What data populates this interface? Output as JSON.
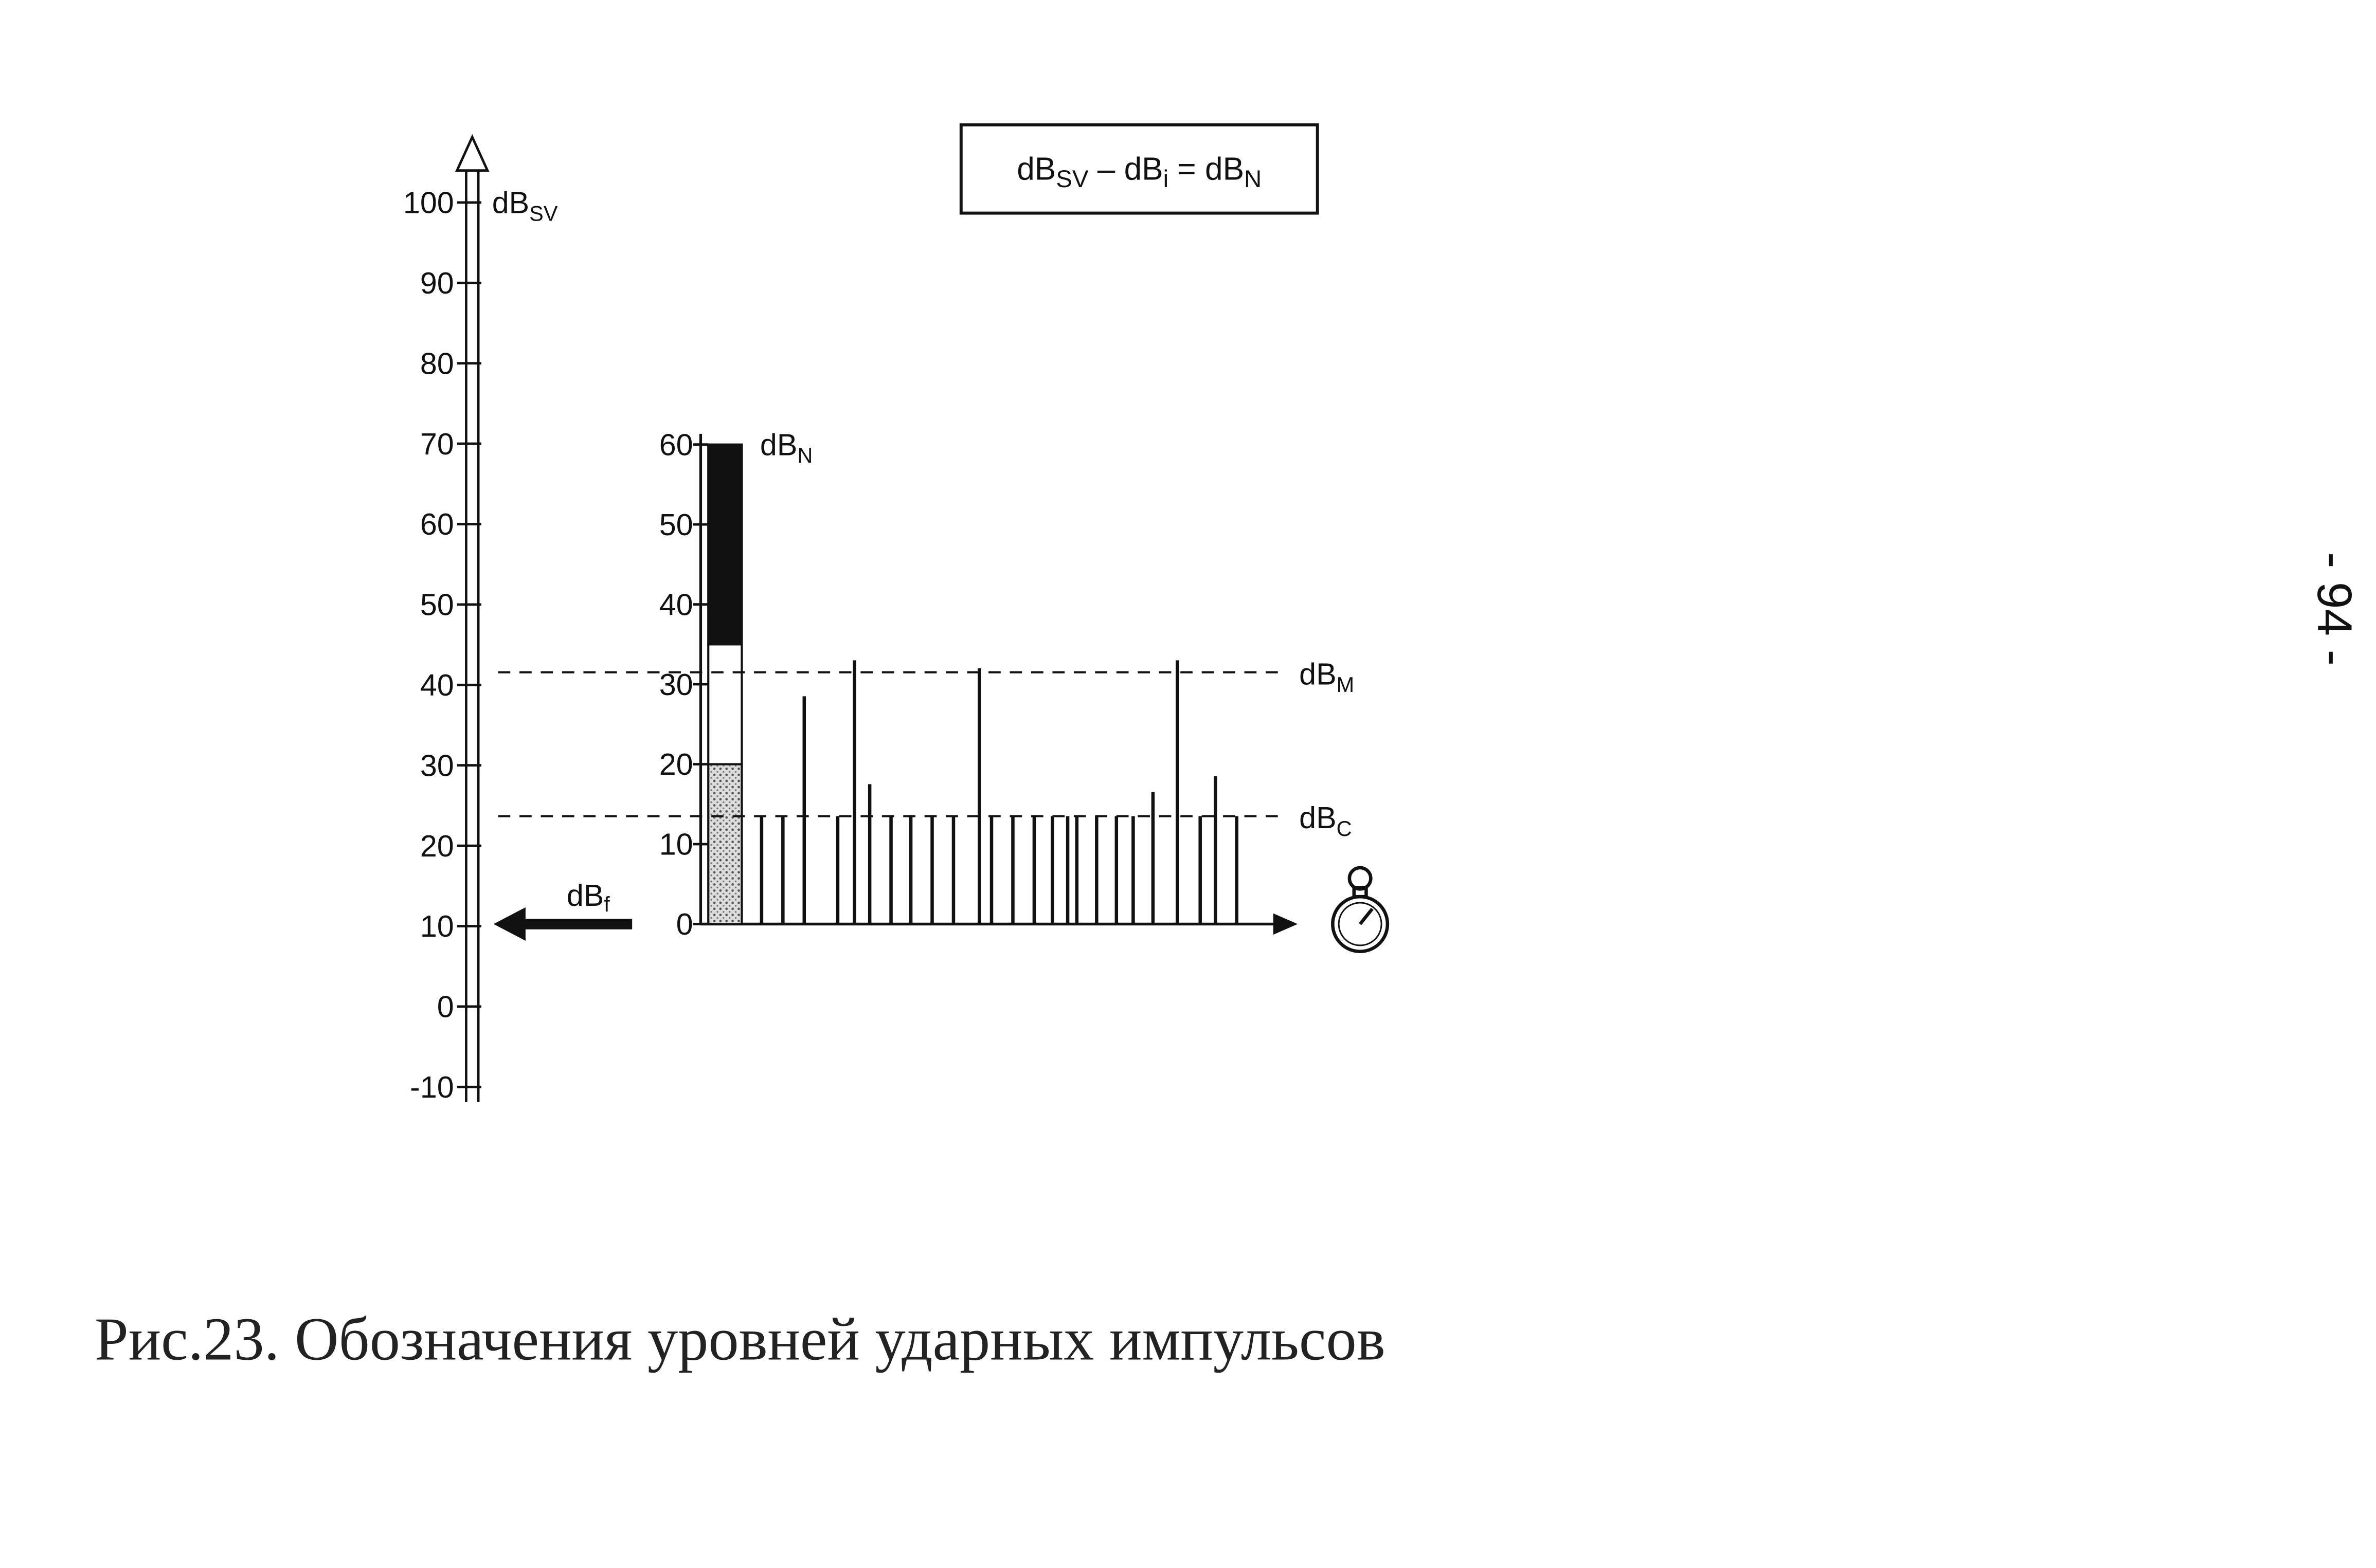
{
  "formula": [
    "dB",
    "SV",
    " – dB",
    "i",
    " = dB",
    "N"
  ],
  "outer_axis": {
    "label": "dB",
    "label_sub": "SV",
    "ylim": [
      -10,
      100
    ],
    "yticks": [
      100,
      90,
      80,
      70,
      60,
      50,
      40,
      30,
      20,
      10,
      0,
      -10
    ]
  },
  "inner_axis": {
    "label": "dB",
    "label_sub": "N",
    "ylim": [
      0,
      60
    ],
    "yticks": [
      60,
      50,
      40,
      30,
      20,
      10,
      0
    ]
  },
  "level_bar": [
    20,
    15,
    25
  ],
  "levels": [
    {
      "label": "dB",
      "label_sub": "M",
      "value": 31.5
    },
    {
      "label": "dB",
      "label_sub": "C",
      "value": 13.5
    }
  ],
  "pulses": [
    13.5,
    13.5,
    28.5,
    13.5,
    33,
    17.5,
    13.5,
    13.5,
    13.5,
    13.5,
    32,
    13.5,
    13.5,
    13.5,
    13.5,
    13.5,
    13.5,
    13.5,
    13.5,
    13.5,
    16.5,
    33,
    13.5,
    18.5,
    13.5
  ],
  "arrow_label": {
    "label": "dB",
    "label_sub": "f"
  },
  "caption": "Рис.23. Обозначения уровней ударных импульсов",
  "page_number": "- 94 -"
}
